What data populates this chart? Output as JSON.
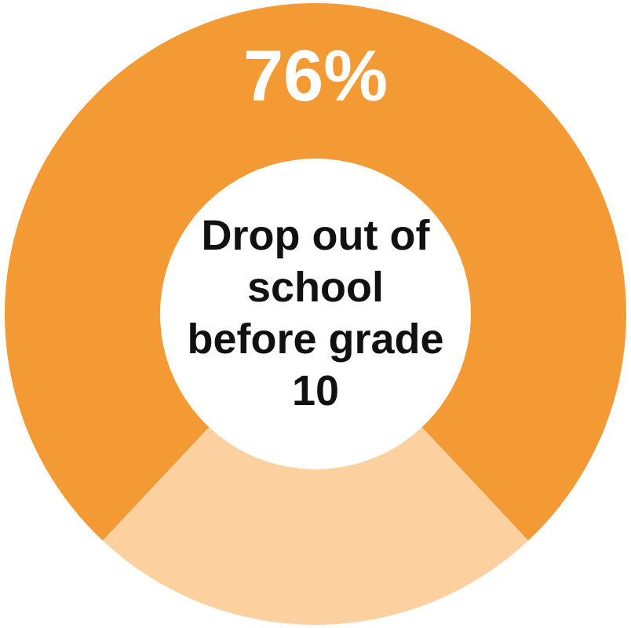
{
  "chart_data": {
    "type": "donut",
    "title": "Drop out of school before grade 10",
    "categories": [
      null,
      null
    ],
    "values": [
      76,
      24
    ],
    "colors": [
      "#f39a35",
      "#fcd09f"
    ],
    "value_labels": [
      "76%",
      null
    ],
    "legend": false
  }
}
